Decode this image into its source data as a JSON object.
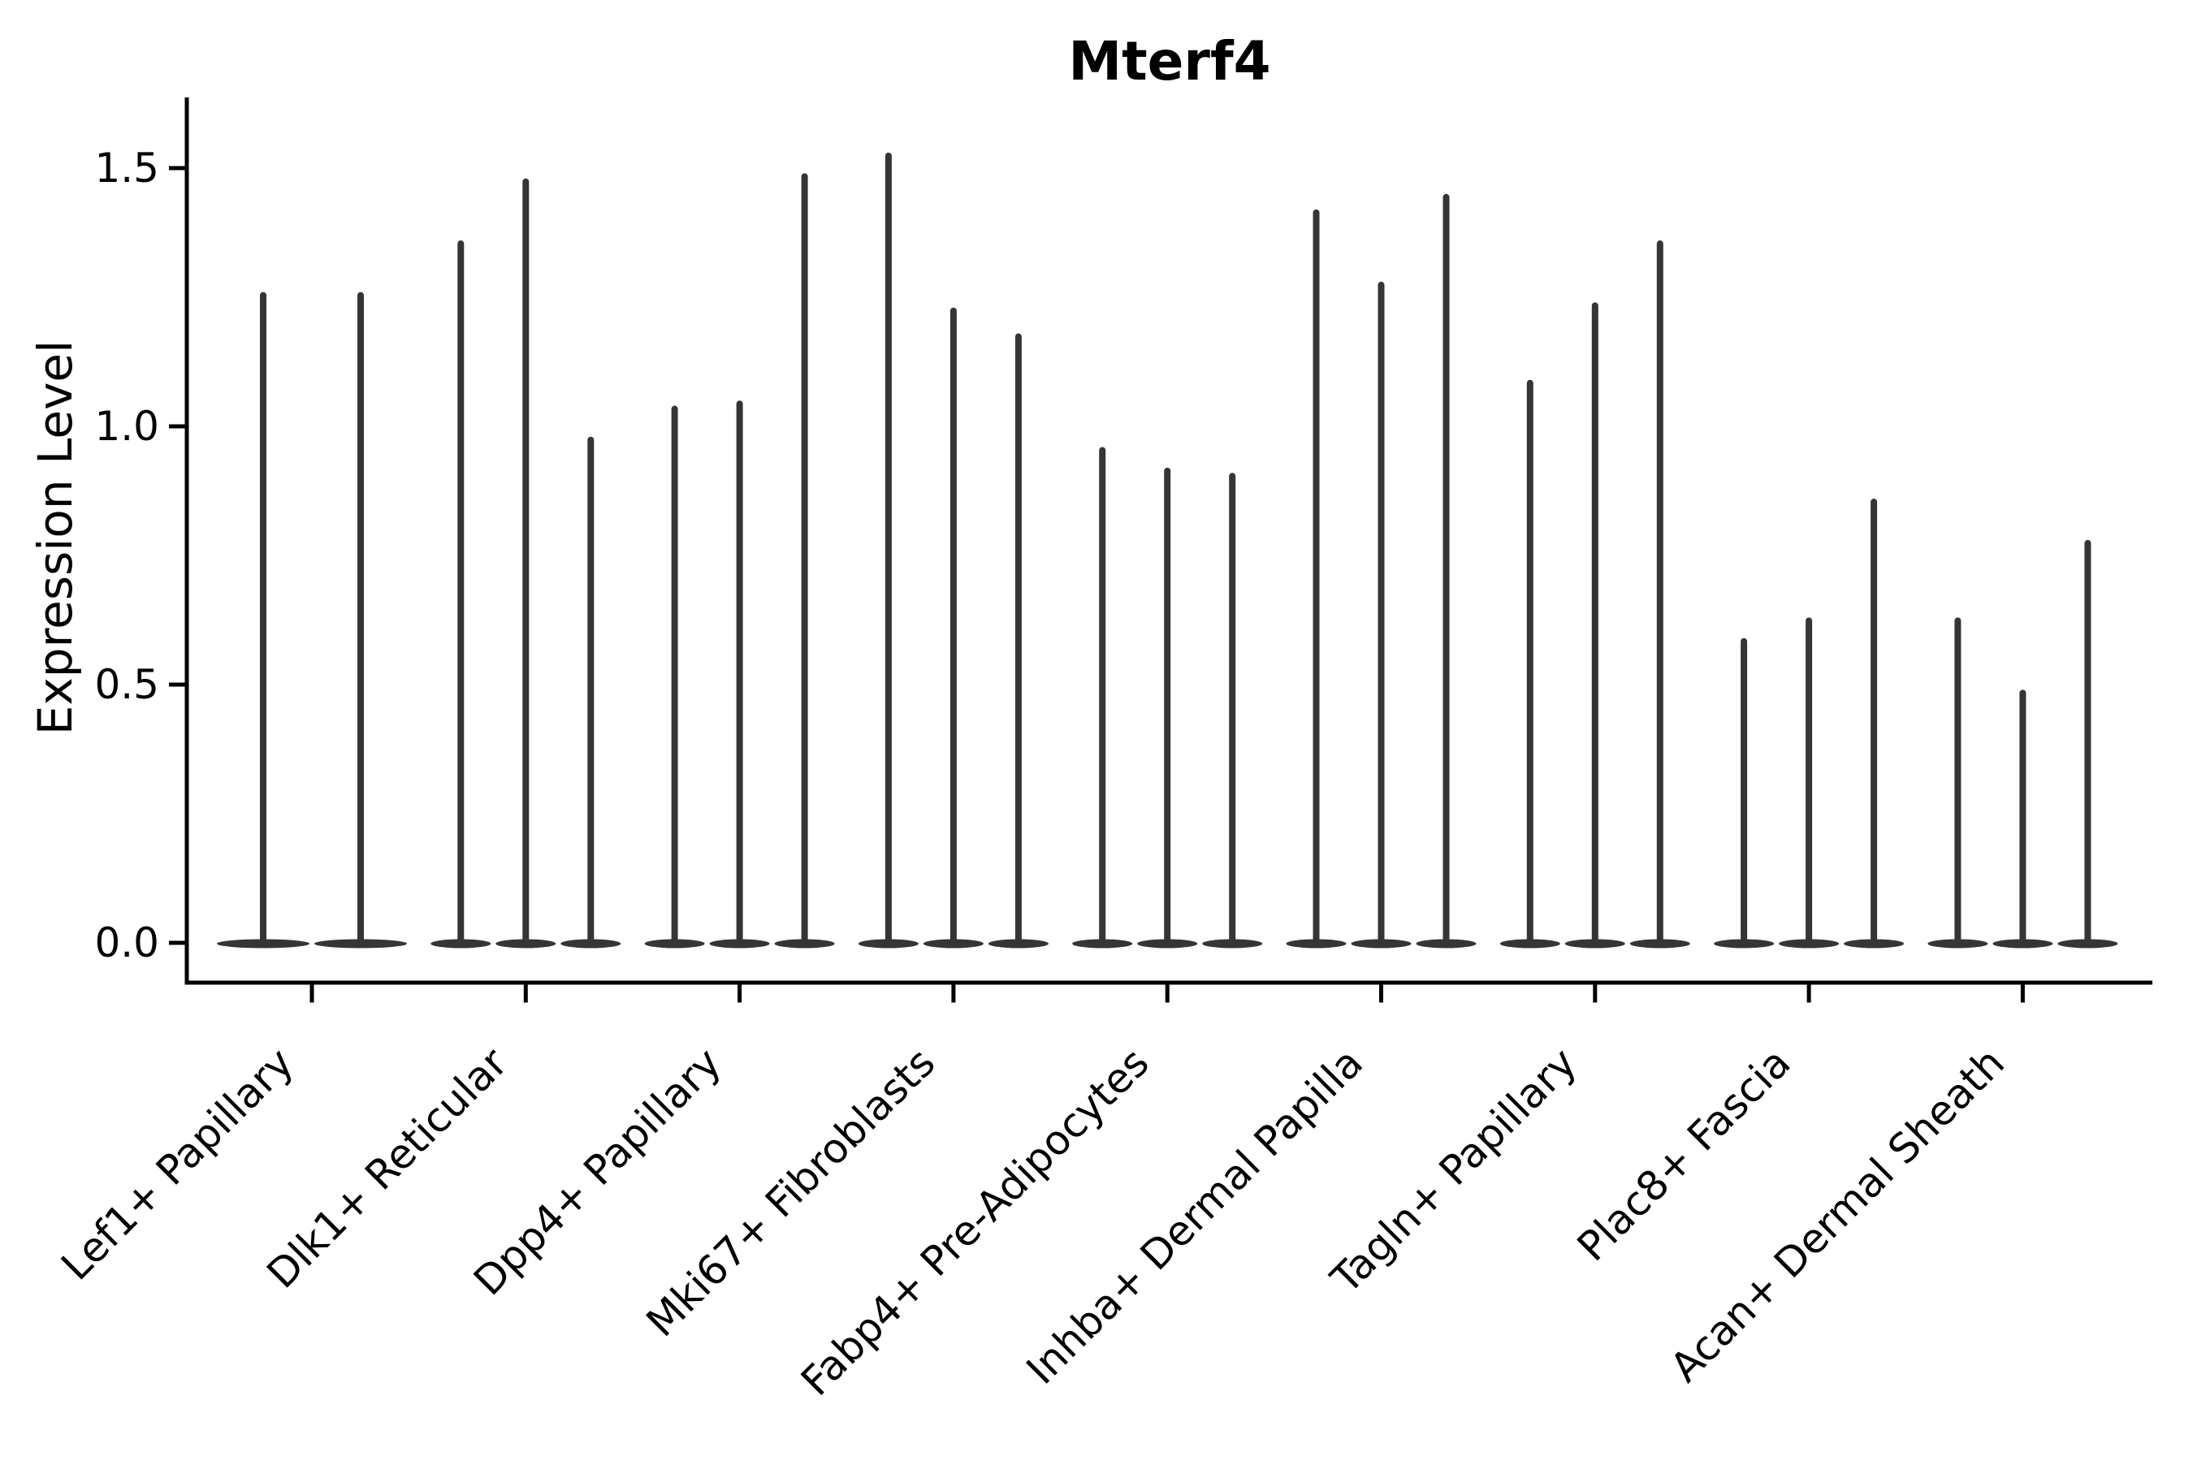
{
  "chart_data": {
    "type": "violin",
    "title": "Mterf4",
    "xlabel": "",
    "ylabel": "Expression Level",
    "y_ticks": [
      0.0,
      0.5,
      1.0,
      1.5
    ],
    "ylim": [
      -0.08,
      1.63
    ],
    "grid": false,
    "legend": false,
    "categories": [
      "Lef1+ Papillary",
      "Dlk1+ Reticular",
      "Dpp4+ Papillary",
      "Mki67+ Fibroblasts",
      "Fabp4+ Pre-Adipocytes",
      "Inhba+ Dermal Papilla",
      "Tagln+ Papillary",
      "Plac8+ Fascia",
      "Acan+ Dermal Sheath"
    ],
    "series_note": "each sub-array holds the peak expression value of the thin violins within that category, left to right",
    "values": [
      [
        1.26,
        1.26
      ],
      [
        1.36,
        1.48,
        0.98
      ],
      [
        1.04,
        1.05,
        1.49
      ],
      [
        1.53,
        1.23,
        1.18
      ],
      [
        0.96,
        0.92,
        0.91
      ],
      [
        1.42,
        1.28,
        1.45
      ],
      [
        1.09,
        1.24,
        1.36
      ],
      [
        0.59,
        0.63,
        0.86
      ],
      [
        0.63,
        0.49,
        0.78
      ]
    ],
    "colors": {
      "violin": "#353535",
      "axis": "#000000",
      "background": "#ffffff"
    }
  }
}
